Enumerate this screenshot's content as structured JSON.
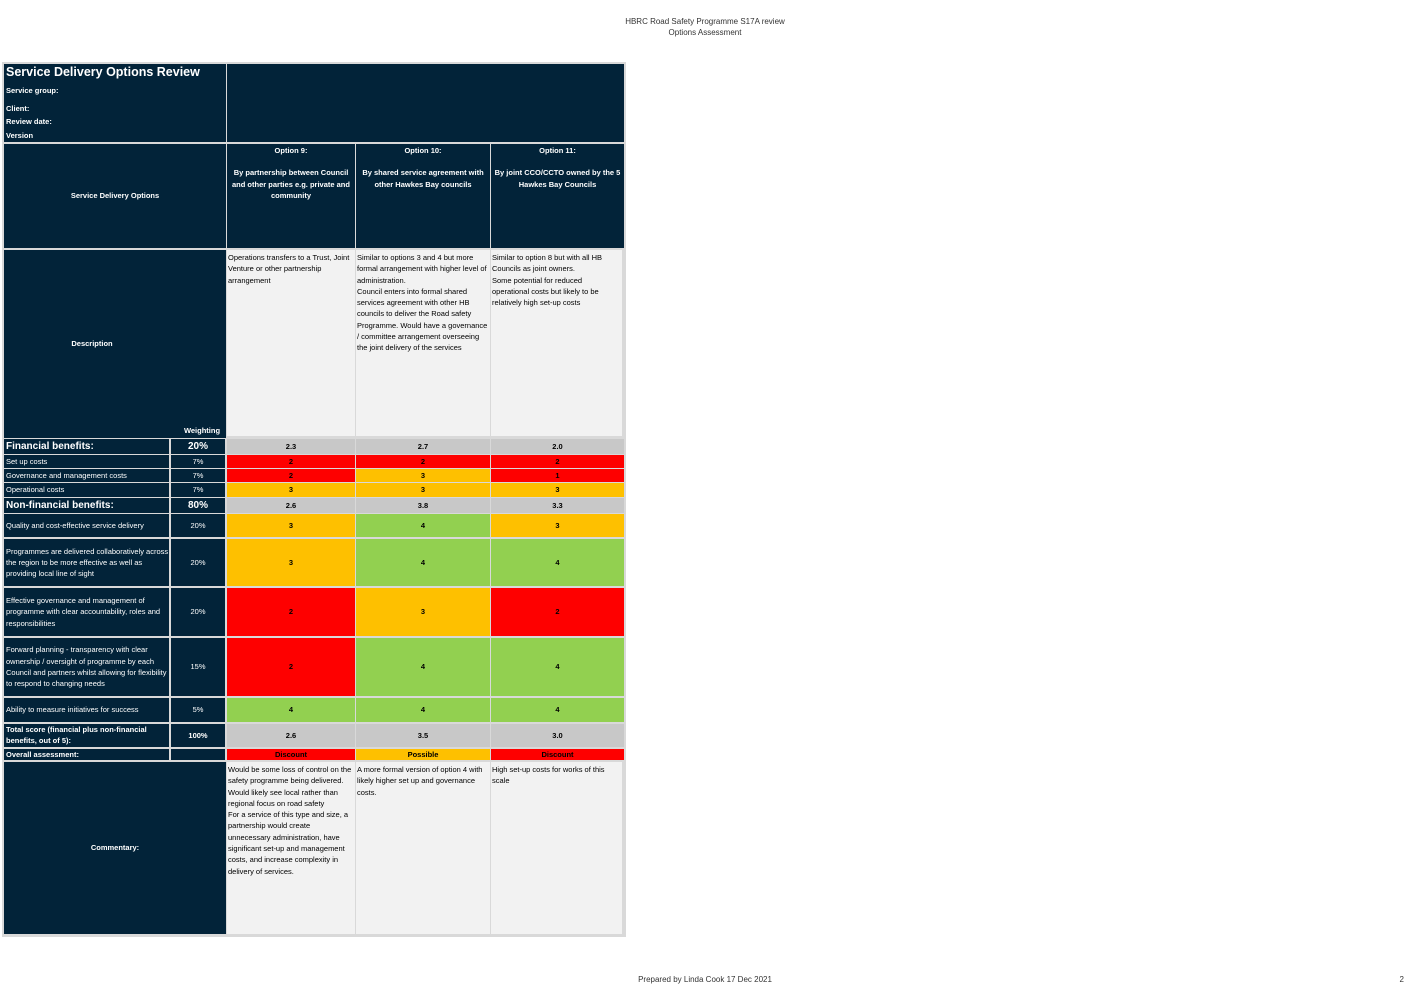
{
  "header": {
    "line1": "HBRC Road Safety Programme S17A review",
    "line2": "Options Assessment"
  },
  "title_block": {
    "title": "Service Delivery Options Review",
    "service_group": "Service group:",
    "client": "Client:",
    "review_date": "Review date:",
    "version": "Version"
  },
  "options_header": {
    "row_label": "Service Delivery Options",
    "options": [
      {
        "name": "Option 9:",
        "desc": "By partnership between Council and other parties e.g. private and community"
      },
      {
        "name": "Option 10:",
        "desc": "By shared service agreement with other Hawkes Bay councils"
      },
      {
        "name": "Option 11:",
        "desc": "By joint CCO/CCTO owned by the 5 Hawkes Bay Councils"
      }
    ]
  },
  "description": {
    "label": "Description",
    "weighting_label": "Weighting",
    "texts": [
      "Operations transfers to a Trust, Joint Venture or other partnership arrangement",
      "Similar to options 3 and 4 but more formal arrangement with higher level of administration.\nCouncil enters into formal shared services agreement with other HB councils to deliver the Road safety Programme. Would have a governance / committee arrangement overseeing the joint delivery of the services",
      "Similar to option 8 but with all HB Councils as joint owners.\nSome potential for reduced operational costs but likely to be relatively high set-up costs"
    ]
  },
  "financial": {
    "label": "Financial benefits:",
    "weight": "20%",
    "scores": [
      "2.3",
      "2.7",
      "2.0"
    ],
    "rows": [
      {
        "label": "Set up costs",
        "weight": "7%",
        "values": [
          "2",
          "2",
          "2"
        ],
        "colors": [
          "#fe0000",
          "#fe0000",
          "#fe0000"
        ]
      },
      {
        "label": "Governance and management costs",
        "weight": "7%",
        "values": [
          "2",
          "3",
          "1"
        ],
        "colors": [
          "#fe0000",
          "#fec000",
          "#fe0000"
        ]
      },
      {
        "label": "Operational costs",
        "weight": "7%",
        "values": [
          "3",
          "3",
          "3"
        ],
        "colors": [
          "#fec000",
          "#fec000",
          "#fec000"
        ]
      }
    ]
  },
  "non_financial": {
    "label": "Non-financial benefits:",
    "weight": "80%",
    "scores": [
      "2.6",
      "3.8",
      "3.3"
    ],
    "rows": [
      {
        "label": "Quality and cost-effective service delivery",
        "weight": "20%",
        "values": [
          "3",
          "4",
          "3"
        ],
        "colors": [
          "#fec000",
          "#92d050",
          "#fec000"
        ]
      },
      {
        "label": "Programmes are delivered collaboratively across the region to be more effective as well as providing local line of sight",
        "weight": "20%",
        "values": [
          "3",
          "4",
          "4"
        ],
        "colors": [
          "#fec000",
          "#92d050",
          "#92d050"
        ]
      },
      {
        "label": "Effective governance and management of programme with clear accountability, roles and responsibilities",
        "weight": "20%",
        "values": [
          "2",
          "3",
          "2"
        ],
        "colors": [
          "#fe0000",
          "#fec000",
          "#fe0000"
        ]
      },
      {
        "label": "Forward planning - transparency with clear ownership / oversight of programme by each Council and partners whilst allowing for flexibility to respond to changing needs",
        "weight": "15%",
        "values": [
          "2",
          "4",
          "4"
        ],
        "colors": [
          "#fe0000",
          "#92d050",
          "#92d050"
        ]
      },
      {
        "label": "Ability to measure initiatives for success",
        "weight": "5%",
        "values": [
          "4",
          "4",
          "4"
        ],
        "colors": [
          "#92d050",
          "#92d050",
          "#92d050"
        ]
      }
    ]
  },
  "total": {
    "label": "Total score (financial plus non-financial benefits, out of 5):",
    "weight": "100%",
    "scores": [
      "2.6",
      "3.5",
      "3.0"
    ]
  },
  "overall": {
    "label": "Overall assessment:",
    "values": [
      "Discount",
      "Possible",
      "Discount"
    ],
    "colors": [
      "#fe0000",
      "#fec000",
      "#fe0000"
    ]
  },
  "commentary": {
    "label": "Commentary:",
    "texts": [
      "Would be some loss of control on the safety programme being delivered.\nWould likely see local rather than regional focus on road safety\nFor a service of this type and size, a partnership would create unnecessary administration, have significant set-up and management costs, and increase complexity in delivery of services.",
      "A more formal version of option 4 with likely higher set up and governance costs.",
      "High set-up costs for works of this scale"
    ]
  },
  "footer": {
    "prepared": "Prepared by Linda Cook 17 Dec 2021",
    "page": "2"
  }
}
